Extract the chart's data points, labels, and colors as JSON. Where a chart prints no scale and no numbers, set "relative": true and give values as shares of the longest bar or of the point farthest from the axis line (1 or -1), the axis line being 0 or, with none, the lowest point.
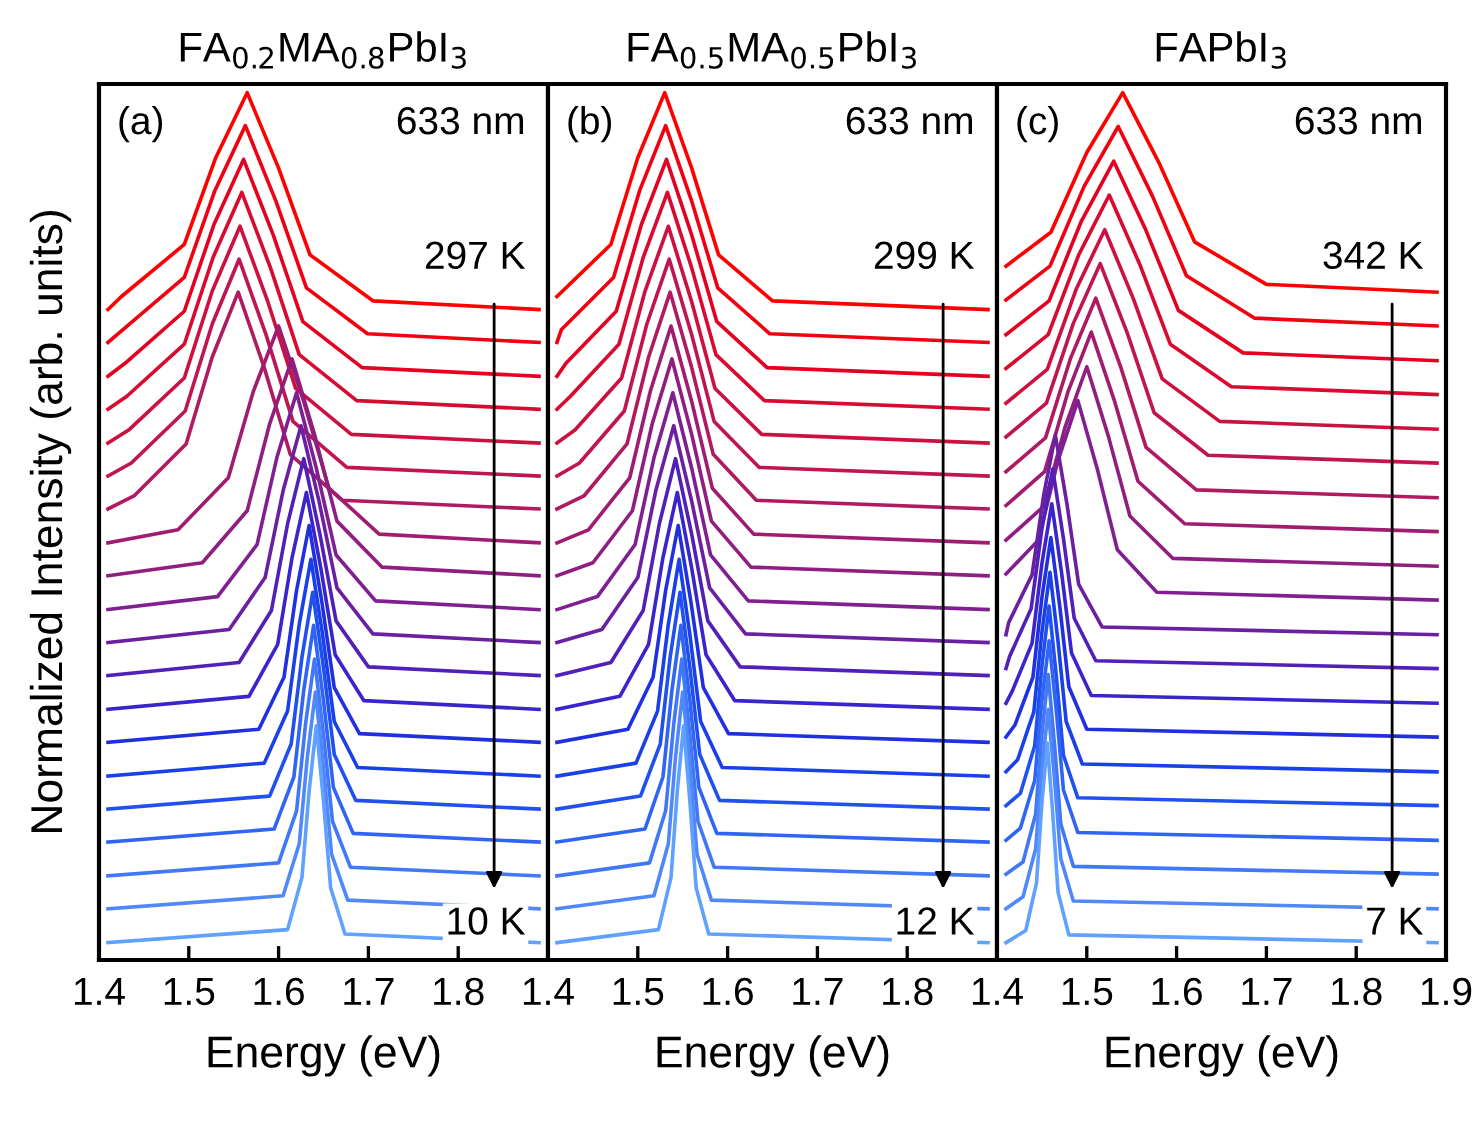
{
  "chart_data": [
    {
      "type": "line",
      "relative": true,
      "title": "FA$_{0.2}$MA$_{0.8}$PbI$_{3}$",
      "xlabel": "Energy (eV)",
      "ylabel": "Normalized Intensity (arb. units)",
      "xlim": [
        1.4,
        1.9
      ],
      "xticks": [
        1.4,
        1.5,
        1.6,
        1.7,
        1.8,
        {
          "value": 1.9,
          "label": null
        }
      ],
      "tick_labels": "x",
      "legend": false,
      "grid": false,
      "marker": "none",
      "line_style": "solid",
      "annotations": [
        "(a)",
        "633 nm",
        "297 K",
        "10 K"
      ],
      "series": [
        {
          "color": "#ff0000",
          "x": [
            1.41,
            1.425,
            1.495,
            1.53,
            1.565,
            1.6,
            1.635,
            1.705,
            1.89
          ],
          "values": [
            0.75,
            0.765,
            0.825,
            0.925,
            1.0,
            0.913,
            0.813,
            0.76,
            0.75
          ]
        },
        {
          "color": "#f00010",
          "x": [
            1.41,
            1.427,
            1.495,
            1.529,
            1.563,
            1.597,
            1.631,
            1.699,
            1.89
          ],
          "values": [
            0.712,
            0.727,
            0.787,
            0.887,
            0.962,
            0.875,
            0.775,
            0.722,
            0.712
          ]
        },
        {
          "color": "#e40020",
          "x": [
            1.41,
            1.429,
            1.495,
            1.528,
            1.561,
            1.594,
            1.627,
            1.693,
            1.89
          ],
          "values": [
            0.673,
            0.688,
            0.748,
            0.848,
            0.923,
            0.836,
            0.736,
            0.683,
            0.673
          ]
        },
        {
          "color": "#d80a30",
          "x": [
            1.41,
            1.431,
            1.495,
            1.527,
            1.559,
            1.591,
            1.623,
            1.687,
            1.89
          ],
          "values": [
            0.635,
            0.65,
            0.71,
            0.81,
            0.885,
            0.798,
            0.698,
            0.645,
            0.635
          ]
        },
        {
          "color": "#cc1040",
          "x": [
            1.41,
            1.433,
            1.495,
            1.526,
            1.557,
            1.588,
            1.619,
            1.681,
            1.89
          ],
          "values": [
            0.596,
            0.611,
            0.671,
            0.771,
            0.846,
            0.759,
            0.659,
            0.606,
            0.596
          ]
        },
        {
          "color": "#c01550",
          "x": [
            1.41,
            1.436,
            1.496,
            1.526,
            1.556,
            1.586,
            1.616,
            1.676,
            1.89
          ],
          "values": [
            0.558,
            0.573,
            0.633,
            0.733,
            0.808,
            0.721,
            0.621,
            0.568,
            0.558
          ]
        },
        {
          "color": "#b01a60",
          "x": [
            1.41,
            1.439,
            1.497,
            1.526,
            1.555,
            1.584,
            1.613,
            1.671,
            1.89
          ],
          "values": [
            0.52,
            0.535,
            0.595,
            0.695,
            0.77,
            0.683,
            0.583,
            0.53,
            0.52
          ]
        },
        {
          "color": "#a01c70",
          "x": [
            1.41,
            1.488,
            1.544,
            1.572,
            1.6,
            1.628,
            1.656,
            1.712,
            1.89
          ],
          "values": [
            0.481,
            0.496,
            0.556,
            0.656,
            0.731,
            0.644,
            0.544,
            0.491,
            0.481
          ]
        },
        {
          "color": "#901e80",
          "x": [
            1.41,
            1.515,
            1.565,
            1.59,
            1.615,
            1.64,
            1.665,
            1.715,
            1.89
          ],
          "values": [
            0.443,
            0.458,
            0.518,
            0.618,
            0.693,
            0.606,
            0.506,
            0.453,
            0.443
          ]
        },
        {
          "color": "#802090",
          "x": [
            1.41,
            1.532,
            1.576,
            1.598,
            1.62,
            1.642,
            1.664,
            1.708,
            1.89
          ],
          "values": [
            0.404,
            0.419,
            0.479,
            0.579,
            0.654,
            0.567,
            0.467,
            0.414,
            0.404
          ]
        },
        {
          "color": "#6a20a0",
          "x": [
            1.41,
            1.545,
            1.585,
            1.605,
            1.625,
            1.645,
            1.665,
            1.705,
            1.89
          ],
          "values": [
            0.366,
            0.381,
            0.441,
            0.541,
            0.616,
            0.529,
            0.429,
            0.376,
            0.366
          ]
        },
        {
          "color": "#5020b8",
          "x": [
            1.41,
            1.556,
            1.592,
            1.61,
            1.628,
            1.646,
            1.664,
            1.7,
            1.89
          ],
          "values": [
            0.328,
            0.343,
            0.403,
            0.503,
            0.578,
            0.491,
            0.391,
            0.338,
            0.328
          ]
        },
        {
          "color": "#3a24cc",
          "x": [
            1.41,
            1.567,
            1.599,
            1.615,
            1.631,
            1.647,
            1.663,
            1.695,
            1.89
          ],
          "values": [
            0.289,
            0.304,
            0.364,
            0.464,
            0.539,
            0.452,
            0.352,
            0.299,
            0.289
          ]
        },
        {
          "color": "#2030e0",
          "x": [
            1.41,
            1.578,
            1.606,
            1.62,
            1.634,
            1.648,
            1.662,
            1.69,
            1.89
          ],
          "values": [
            0.251,
            0.266,
            0.326,
            0.426,
            0.501,
            0.414,
            0.314,
            0.261,
            0.251
          ]
        },
        {
          "color": "#1a40ea",
          "x": [
            1.41,
            1.584,
            1.61,
            1.623,
            1.636,
            1.649,
            1.662,
            1.688,
            1.89
          ],
          "values": [
            0.212,
            0.227,
            0.287,
            0.387,
            0.462,
            0.375,
            0.275,
            0.222,
            0.212
          ]
        },
        {
          "color": "#2050f0",
          "x": [
            1.41,
            1.59,
            1.614,
            1.626,
            1.638,
            1.65,
            1.662,
            1.686,
            1.89
          ],
          "values": [
            0.174,
            0.189,
            0.249,
            0.349,
            0.424,
            0.337,
            0.237,
            0.184,
            0.174
          ]
        },
        {
          "color": "#3064f4",
          "x": [
            1.41,
            1.595,
            1.617,
            1.628,
            1.639,
            1.65,
            1.661,
            1.683,
            1.89
          ],
          "values": [
            0.136,
            0.151,
            0.211,
            0.311,
            0.386,
            0.299,
            0.199,
            0.146,
            0.136
          ]
        },
        {
          "color": "#4078f8",
          "x": [
            1.41,
            1.6,
            1.62,
            1.63,
            1.64,
            1.65,
            1.66,
            1.68,
            1.89
          ],
          "values": [
            0.097,
            0.112,
            0.172,
            0.272,
            0.347,
            0.26,
            0.16,
            0.107,
            0.097
          ]
        },
        {
          "color": "#5088fa",
          "x": [
            1.41,
            1.605,
            1.623,
            1.632,
            1.641,
            1.65,
            1.659,
            1.677,
            1.89
          ],
          "values": [
            0.059,
            0.074,
            0.134,
            0.234,
            0.309,
            0.222,
            0.122,
            0.069,
            0.059
          ]
        },
        {
          "color": "#60a0ff",
          "x": [
            1.41,
            1.61,
            1.626,
            1.634,
            1.642,
            1.65,
            1.658,
            1.674,
            1.89
          ],
          "values": [
            0.02,
            0.035,
            0.095,
            0.195,
            0.27,
            0.183,
            0.083,
            0.03,
            0.02
          ]
        }
      ]
    },
    {
      "type": "line",
      "relative": true,
      "title": "FA$_{0.5}$MA$_{0.5}$PbI$_{3}$",
      "xlabel": "Energy (eV)",
      "xlim": [
        1.4,
        1.9
      ],
      "xticks": [
        1.4,
        1.5,
        1.6,
        1.7,
        1.8,
        {
          "value": 1.9,
          "label": null
        }
      ],
      "tick_labels": "x",
      "legend": false,
      "grid": false,
      "marker": "none",
      "line_style": "solid",
      "annotations": [
        "(b)",
        "633 nm",
        "299 K",
        "12 K"
      ],
      "series": [
        {
          "color": "#ff0000",
          "x": [
            1.41,
            1.47,
            1.5,
            1.53,
            1.56,
            1.59,
            1.65,
            1.89
          ],
          "values": [
            0.765,
            0.825,
            0.925,
            1.0,
            0.913,
            0.813,
            0.76,
            0.75
          ]
        },
        {
          "color": "#f00010",
          "x": [
            1.41,
            1.415,
            1.473,
            1.502,
            1.531,
            1.56,
            1.589,
            1.647,
            1.89
          ],
          "values": [
            0.712,
            0.727,
            0.787,
            0.887,
            0.962,
            0.875,
            0.775,
            0.722,
            0.712
          ]
        },
        {
          "color": "#e40020",
          "x": [
            1.41,
            1.42,
            1.476,
            1.504,
            1.532,
            1.56,
            1.588,
            1.644,
            1.89
          ],
          "values": [
            0.673,
            0.688,
            0.748,
            0.848,
            0.923,
            0.836,
            0.736,
            0.683,
            0.673
          ]
        },
        {
          "color": "#d80a30",
          "x": [
            1.41,
            1.425,
            1.479,
            1.506,
            1.533,
            1.56,
            1.587,
            1.641,
            1.89
          ],
          "values": [
            0.635,
            0.65,
            0.71,
            0.81,
            0.885,
            0.798,
            0.698,
            0.645,
            0.635
          ]
        },
        {
          "color": "#cc1040",
          "x": [
            1.41,
            1.43,
            1.482,
            1.508,
            1.534,
            1.56,
            1.586,
            1.638,
            1.89
          ],
          "values": [
            0.596,
            0.611,
            0.671,
            0.771,
            0.846,
            0.759,
            0.659,
            0.606,
            0.596
          ]
        },
        {
          "color": "#c01550",
          "x": [
            1.41,
            1.435,
            1.485,
            1.51,
            1.535,
            1.56,
            1.585,
            1.635,
            1.89
          ],
          "values": [
            0.558,
            0.573,
            0.633,
            0.733,
            0.808,
            0.721,
            0.621,
            0.568,
            0.558
          ]
        },
        {
          "color": "#b01a60",
          "x": [
            1.41,
            1.44,
            1.488,
            1.512,
            1.536,
            1.56,
            1.584,
            1.632,
            1.89
          ],
          "values": [
            0.52,
            0.535,
            0.595,
            0.695,
            0.77,
            0.683,
            0.583,
            0.53,
            0.52
          ]
        },
        {
          "color": "#a01c70",
          "x": [
            1.41,
            1.445,
            1.491,
            1.514,
            1.537,
            1.56,
            1.583,
            1.629,
            1.89
          ],
          "values": [
            0.481,
            0.496,
            0.556,
            0.656,
            0.731,
            0.644,
            0.544,
            0.491,
            0.481
          ]
        },
        {
          "color": "#901e80",
          "x": [
            1.41,
            1.45,
            1.494,
            1.516,
            1.538,
            1.56,
            1.582,
            1.626,
            1.89
          ],
          "values": [
            0.443,
            0.458,
            0.518,
            0.618,
            0.693,
            0.606,
            0.506,
            0.453,
            0.443
          ]
        },
        {
          "color": "#802090",
          "x": [
            1.41,
            1.455,
            1.497,
            1.518,
            1.539,
            1.56,
            1.581,
            1.623,
            1.89
          ],
          "values": [
            0.404,
            0.419,
            0.479,
            0.579,
            0.654,
            0.567,
            0.467,
            0.414,
            0.404
          ]
        },
        {
          "color": "#6a20a0",
          "x": [
            1.41,
            1.46,
            1.5,
            1.52,
            1.54,
            1.56,
            1.58,
            1.62,
            1.89
          ],
          "values": [
            0.366,
            0.381,
            0.441,
            0.541,
            0.616,
            0.529,
            0.429,
            0.376,
            0.366
          ]
        },
        {
          "color": "#5020b8",
          "x": [
            1.41,
            1.47,
            1.506,
            1.524,
            1.542,
            1.56,
            1.578,
            1.614,
            1.89
          ],
          "values": [
            0.328,
            0.343,
            0.403,
            0.503,
            0.578,
            0.491,
            0.391,
            0.338,
            0.328
          ]
        },
        {
          "color": "#3a24cc",
          "x": [
            1.41,
            1.48,
            1.512,
            1.528,
            1.544,
            1.56,
            1.576,
            1.608,
            1.89
          ],
          "values": [
            0.289,
            0.304,
            0.364,
            0.464,
            0.539,
            0.452,
            0.352,
            0.299,
            0.289
          ]
        },
        {
          "color": "#2030e0",
          "x": [
            1.41,
            1.489,
            1.517,
            1.531,
            1.545,
            1.559,
            1.573,
            1.601,
            1.89
          ],
          "values": [
            0.251,
            0.266,
            0.326,
            0.426,
            0.501,
            0.414,
            0.314,
            0.261,
            0.251
          ]
        },
        {
          "color": "#1a40ea",
          "x": [
            1.41,
            1.498,
            1.522,
            1.534,
            1.546,
            1.558,
            1.57,
            1.594,
            1.89
          ],
          "values": [
            0.212,
            0.227,
            0.287,
            0.387,
            0.462,
            0.375,
            0.275,
            0.222,
            0.212
          ]
        },
        {
          "color": "#2050f0",
          "x": [
            1.41,
            1.503,
            1.525,
            1.536,
            1.547,
            1.558,
            1.569,
            1.591,
            1.89
          ],
          "values": [
            0.174,
            0.189,
            0.249,
            0.349,
            0.424,
            0.337,
            0.237,
            0.184,
            0.174
          ]
        },
        {
          "color": "#3064f4",
          "x": [
            1.41,
            1.508,
            1.528,
            1.538,
            1.548,
            1.558,
            1.568,
            1.588,
            1.89
          ],
          "values": [
            0.136,
            0.151,
            0.211,
            0.311,
            0.386,
            0.299,
            0.199,
            0.146,
            0.136
          ]
        },
        {
          "color": "#4078f8",
          "x": [
            1.41,
            1.513,
            1.531,
            1.54,
            1.549,
            1.558,
            1.567,
            1.585,
            1.89
          ],
          "values": [
            0.097,
            0.112,
            0.172,
            0.272,
            0.347,
            0.26,
            0.16,
            0.107,
            0.097
          ]
        },
        {
          "color": "#5088fa",
          "x": [
            1.41,
            1.518,
            1.534,
            1.542,
            1.55,
            1.558,
            1.566,
            1.582,
            1.89
          ],
          "values": [
            0.059,
            0.074,
            0.134,
            0.234,
            0.309,
            0.222,
            0.122,
            0.069,
            0.059
          ]
        },
        {
          "color": "#60a0ff",
          "x": [
            1.41,
            1.523,
            1.537,
            1.544,
            1.551,
            1.558,
            1.565,
            1.579,
            1.89
          ],
          "values": [
            0.02,
            0.035,
            0.095,
            0.195,
            0.27,
            0.183,
            0.083,
            0.03,
            0.02
          ]
        }
      ]
    },
    {
      "type": "line",
      "relative": true,
      "title": "FAPbI$_{3}$",
      "xlabel": "Energy (eV)",
      "xlim": [
        1.4,
        1.9
      ],
      "xticks": [
        1.4,
        1.5,
        1.6,
        1.7,
        1.8,
        1.9
      ],
      "tick_labels": "x",
      "legend": false,
      "grid": false,
      "marker": "none",
      "line_style": "solid",
      "annotations": [
        "(c)",
        "633 nm",
        "342 K",
        "7 K"
      ],
      "series": [
        {
          "color": "#ff0000",
          "x": [
            1.41,
            1.46,
            1.5,
            1.54,
            1.58,
            1.62,
            1.7,
            1.89
          ],
          "values": [
            0.8,
            0.839,
            0.931,
            1.0,
            0.92,
            0.828,
            0.779,
            0.77
          ]
        },
        {
          "color": "#f00010",
          "x": [
            1.41,
            1.459,
            1.497,
            1.535,
            1.573,
            1.611,
            1.687,
            1.89
          ],
          "values": [
            0.761,
            0.8,
            0.892,
            0.961,
            0.881,
            0.789,
            0.74,
            0.731
          ]
        },
        {
          "color": "#e40020",
          "x": [
            1.41,
            1.458,
            1.494,
            1.53,
            1.566,
            1.602,
            1.674,
            1.89
          ],
          "values": [
            0.721,
            0.76,
            0.852,
            0.921,
            0.841,
            0.749,
            0.7,
            0.691
          ]
        },
        {
          "color": "#d80a30",
          "x": [
            1.41,
            1.457,
            1.491,
            1.525,
            1.559,
            1.593,
            1.661,
            1.89
          ],
          "values": [
            0.682,
            0.721,
            0.813,
            0.882,
            0.802,
            0.71,
            0.661,
            0.652
          ]
        },
        {
          "color": "#cc1040",
          "x": [
            1.41,
            1.456,
            1.488,
            1.52,
            1.552,
            1.584,
            1.648,
            1.89
          ],
          "values": [
            0.642,
            0.681,
            0.773,
            0.842,
            0.762,
            0.67,
            0.621,
            0.612
          ]
        },
        {
          "color": "#c01550",
          "x": [
            1.41,
            1.455,
            1.485,
            1.515,
            1.545,
            1.575,
            1.635,
            1.89
          ],
          "values": [
            0.603,
            0.642,
            0.734,
            0.803,
            0.723,
            0.631,
            0.582,
            0.573
          ]
        },
        {
          "color": "#b01a60",
          "x": [
            1.41,
            1.454,
            1.482,
            1.51,
            1.538,
            1.566,
            1.622,
            1.89
          ],
          "values": [
            0.563,
            0.602,
            0.694,
            0.763,
            0.683,
            0.591,
            0.542,
            0.533
          ]
        },
        {
          "color": "#a01c70",
          "x": [
            1.41,
            1.453,
            1.479,
            1.505,
            1.531,
            1.557,
            1.609,
            1.89
          ],
          "values": [
            0.524,
            0.563,
            0.655,
            0.724,
            0.644,
            0.552,
            0.503,
            0.494
          ]
        },
        {
          "color": "#901e80",
          "x": [
            1.41,
            1.452,
            1.476,
            1.5,
            1.524,
            1.548,
            1.596,
            1.89
          ],
          "values": [
            0.484,
            0.523,
            0.615,
            0.684,
            0.604,
            0.512,
            0.463,
            0.454
          ]
        },
        {
          "color": "#802090",
          "x": [
            1.41,
            1.446,
            1.468,
            1.49,
            1.512,
            1.534,
            1.578,
            1.89
          ],
          "values": [
            0.445,
            0.484,
            0.576,
            0.645,
            0.565,
            0.473,
            0.424,
            0.415
          ]
        },
        {
          "color": "#6a20a0",
          "x": [
            1.41,
            1.413,
            1.439,
            1.452,
            1.465,
            1.478,
            1.491,
            1.517,
            1.89
          ],
          "values": [
            0.375,
            0.389,
            0.444,
            0.536,
            0.605,
            0.525,
            0.433,
            0.384,
            0.375
          ]
        },
        {
          "color": "#5020b8",
          "x": [
            1.41,
            1.414,
            1.438,
            1.45,
            1.462,
            1.474,
            1.486,
            1.51,
            1.89
          ],
          "values": [
            0.336,
            0.35,
            0.405,
            0.497,
            0.566,
            0.486,
            0.394,
            0.345,
            0.336
          ]
        },
        {
          "color": "#3a24cc",
          "x": [
            1.41,
            1.417,
            1.439,
            1.45,
            1.461,
            1.472,
            1.483,
            1.505,
            1.89
          ],
          "values": [
            0.296,
            0.31,
            0.365,
            0.457,
            0.526,
            0.446,
            0.354,
            0.305,
            0.296
          ]
        },
        {
          "color": "#2030e0",
          "x": [
            1.41,
            1.42,
            1.44,
            1.45,
            1.46,
            1.47,
            1.48,
            1.5,
            1.89
          ],
          "values": [
            0.257,
            0.271,
            0.326,
            0.418,
            0.487,
            0.407,
            0.315,
            0.266,
            0.257
          ]
        },
        {
          "color": "#1a40ea",
          "x": [
            1.41,
            1.423,
            1.441,
            1.45,
            1.459,
            1.468,
            1.477,
            1.495,
            1.89
          ],
          "values": [
            0.217,
            0.231,
            0.286,
            0.378,
            0.447,
            0.367,
            0.275,
            0.226,
            0.217
          ]
        },
        {
          "color": "#2050f0",
          "x": [
            1.41,
            1.426,
            1.442,
            1.45,
            1.458,
            1.466,
            1.474,
            1.49,
            1.89
          ],
          "values": [
            0.178,
            0.192,
            0.247,
            0.339,
            0.408,
            0.328,
            0.236,
            0.187,
            0.178
          ]
        },
        {
          "color": "#3064f4",
          "x": [
            1.41,
            1.426,
            1.442,
            1.45,
            1.458,
            1.466,
            1.474,
            1.49,
            1.89
          ],
          "values": [
            0.138,
            0.152,
            0.207,
            0.299,
            0.368,
            0.288,
            0.196,
            0.147,
            0.138
          ]
        },
        {
          "color": "#4078f8",
          "x": [
            1.41,
            1.429,
            1.443,
            1.45,
            1.457,
            1.464,
            1.471,
            1.485,
            1.89
          ],
          "values": [
            0.099,
            0.113,
            0.168,
            0.26,
            0.329,
            0.249,
            0.157,
            0.108,
            0.099
          ]
        },
        {
          "color": "#5088fa",
          "x": [
            1.41,
            1.429,
            1.443,
            1.45,
            1.457,
            1.464,
            1.471,
            1.485,
            1.89
          ],
          "values": [
            0.059,
            0.073,
            0.128,
            0.22,
            0.289,
            0.209,
            0.117,
            0.068,
            0.059
          ]
        },
        {
          "color": "#60a0ff",
          "x": [
            1.41,
            1.432,
            1.444,
            1.45,
            1.456,
            1.462,
            1.468,
            1.48,
            1.89
          ],
          "values": [
            0.02,
            0.034,
            0.089,
            0.181,
            0.25,
            0.17,
            0.078,
            0.029,
            0.02
          ]
        }
      ]
    }
  ]
}
